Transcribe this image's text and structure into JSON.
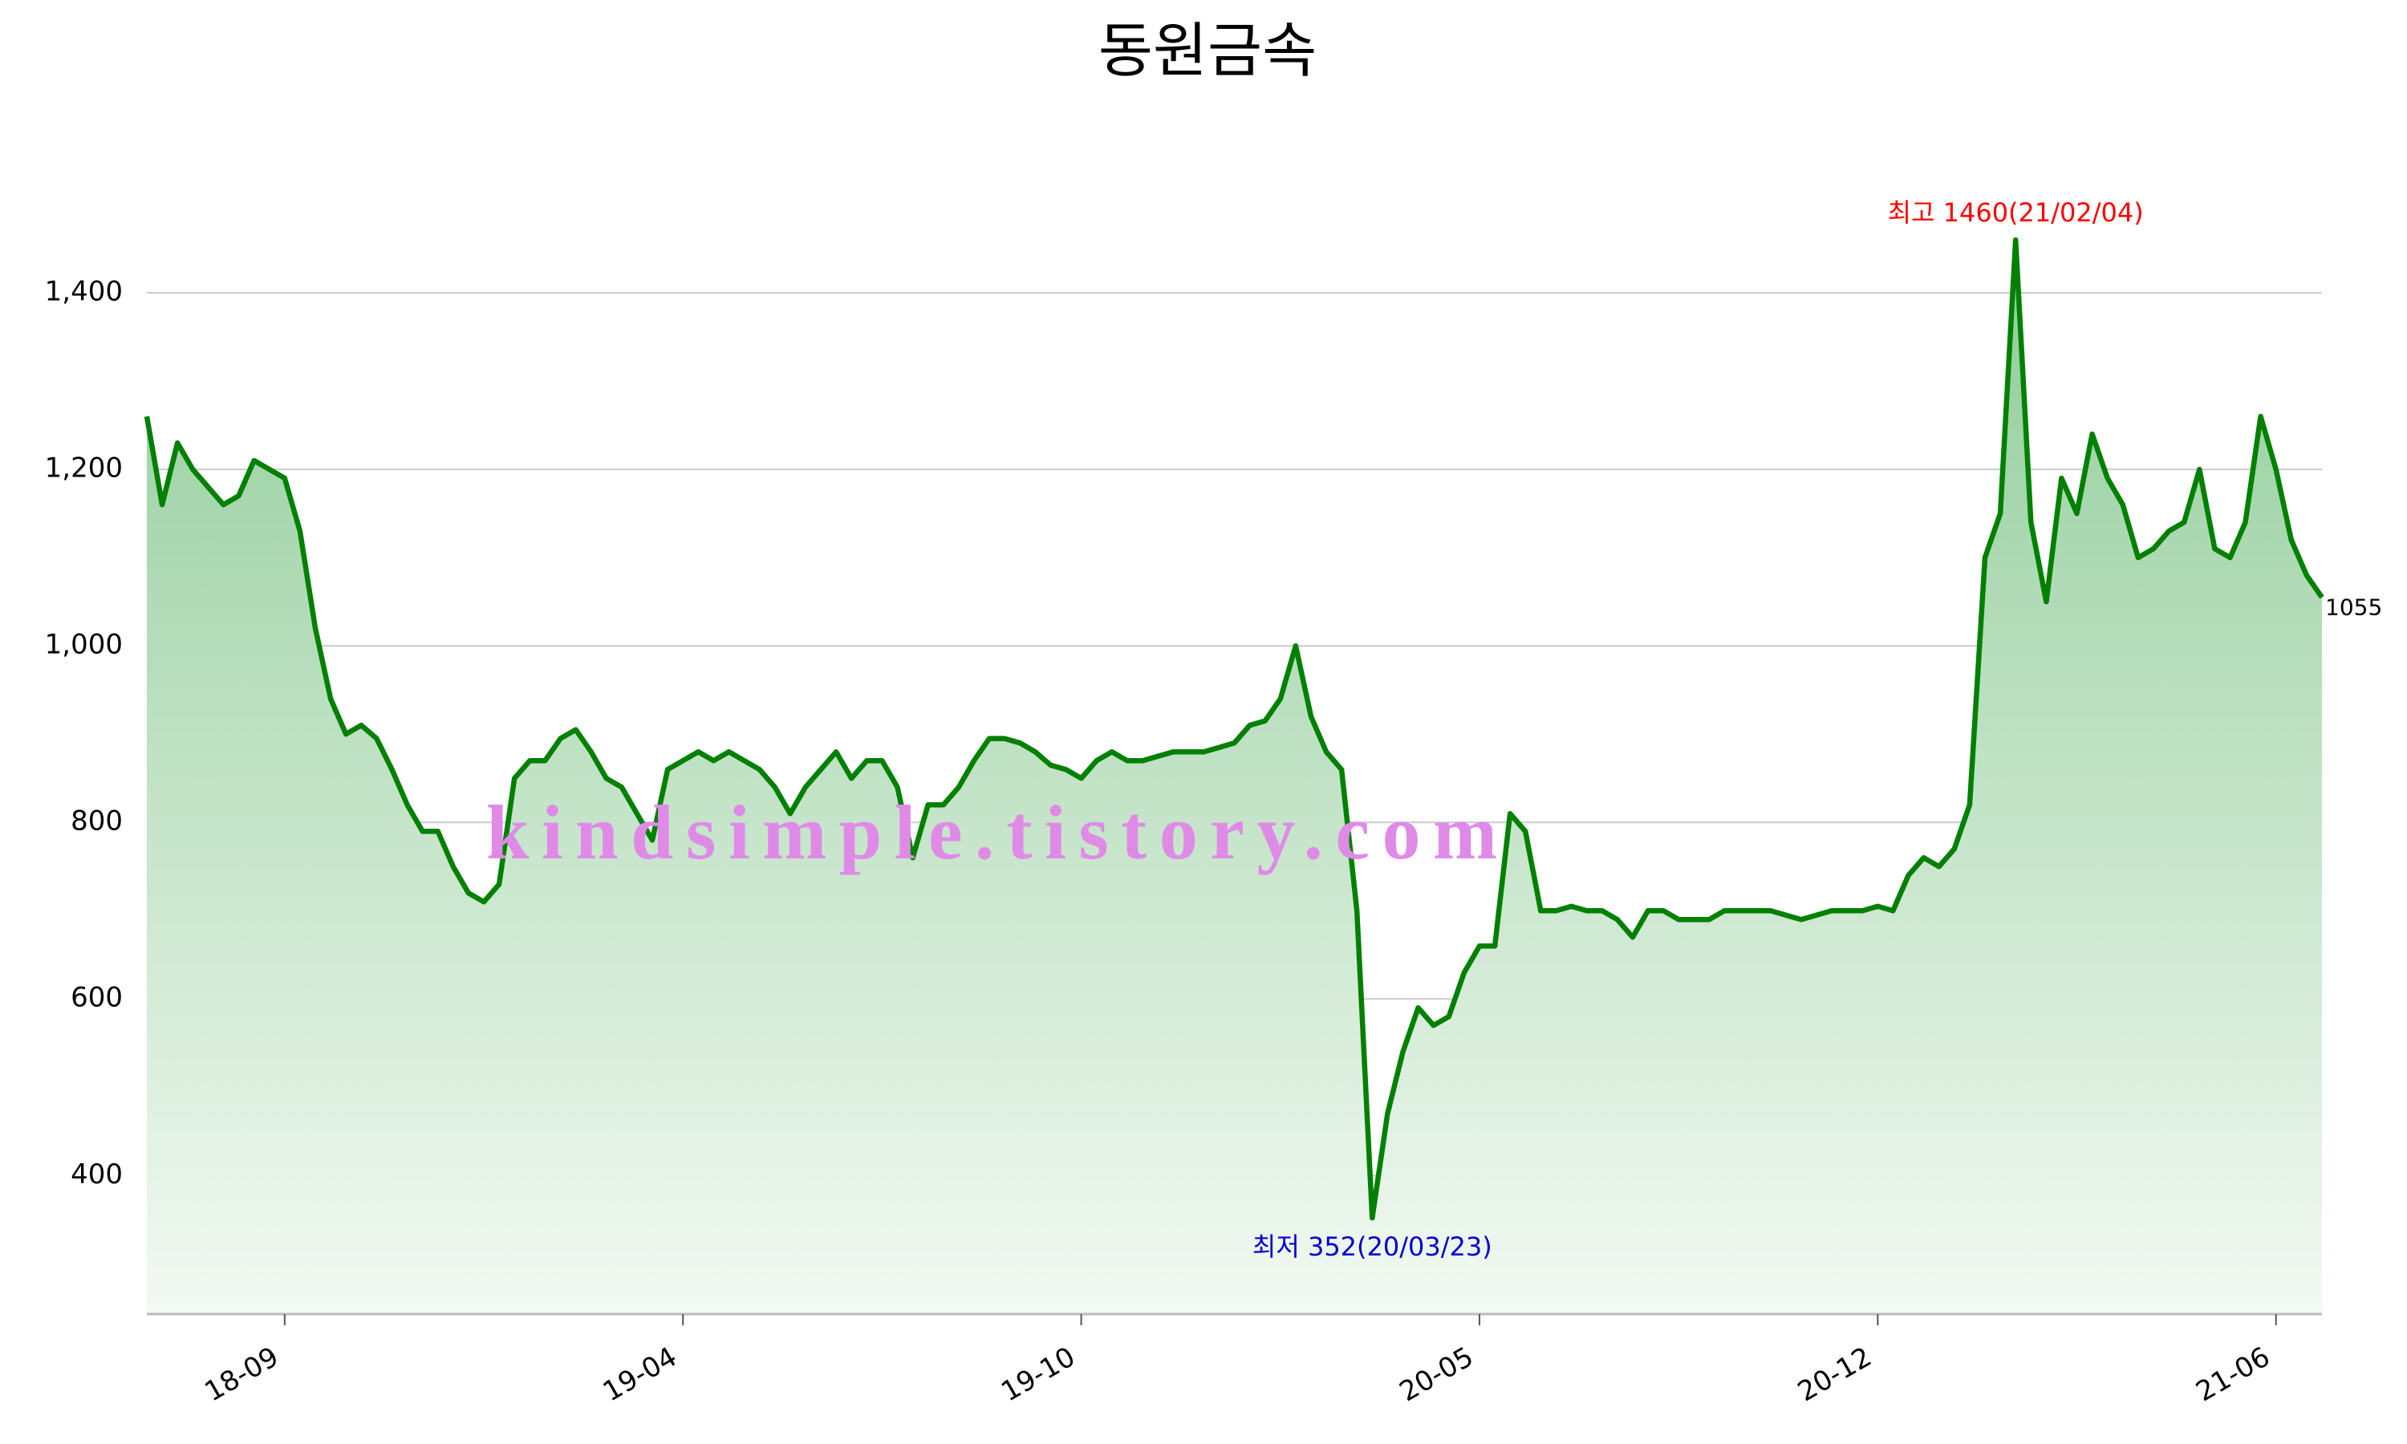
{
  "chart_data": {
    "type": "area",
    "title": "동원금속",
    "categories": [
      null,
      null,
      null,
      null,
      null,
      null,
      null,
      null,
      null,
      "18-09",
      null,
      null,
      null,
      null,
      null,
      null,
      null,
      null,
      null,
      null,
      null,
      null,
      null,
      null,
      null,
      null,
      null,
      null,
      null,
      null,
      null,
      null,
      null,
      null,
      null,
      "19-04",
      null,
      null,
      null,
      null,
      null,
      null,
      null,
      null,
      null,
      null,
      null,
      null,
      null,
      null,
      null,
      null,
      null,
      null,
      null,
      null,
      null,
      null,
      null,
      null,
      null,
      "19-10",
      null,
      null,
      null,
      null,
      null,
      null,
      null,
      null,
      null,
      null,
      null,
      null,
      null,
      null,
      null,
      null,
      null,
      null,
      null,
      null,
      null,
      null,
      null,
      null,
      null,
      "20-05",
      null,
      null,
      null,
      null,
      null,
      null,
      null,
      null,
      null,
      null,
      null,
      null,
      null,
      null,
      null,
      null,
      null,
      null,
      null,
      null,
      null,
      null,
      null,
      null,
      null,
      "20-12",
      null,
      null,
      null,
      null,
      null,
      null,
      null,
      null,
      null,
      null,
      null,
      null,
      null,
      null,
      null,
      null,
      null,
      null,
      null,
      null,
      null,
      null,
      null,
      null,
      null,
      "21-06",
      null,
      null,
      null
    ],
    "values": [
      1260,
      1160,
      1230,
      1200,
      1180,
      1160,
      1170,
      1210,
      1200,
      1190,
      1130,
      1020,
      940,
      900,
      910,
      895,
      860,
      820,
      790,
      790,
      750,
      720,
      710,
      730,
      850,
      870,
      870,
      895,
      905,
      880,
      850,
      840,
      810,
      780,
      860,
      870,
      880,
      870,
      880,
      870,
      860,
      840,
      810,
      840,
      860,
      880,
      850,
      870,
      870,
      840,
      760,
      820,
      820,
      840,
      870,
      895,
      895,
      890,
      880,
      865,
      860,
      850,
      870,
      880,
      870,
      870,
      875,
      880,
      880,
      880,
      885,
      890,
      910,
      915,
      940,
      1000,
      920,
      880,
      860,
      700,
      352,
      470,
      540,
      590,
      570,
      580,
      630,
      660,
      660,
      810,
      790,
      700,
      700,
      705,
      700,
      700,
      690,
      670,
      700,
      700,
      690,
      690,
      690,
      700,
      700,
      700,
      700,
      695,
      690,
      695,
      700,
      700,
      700,
      705,
      700,
      740,
      760,
      750,
      770,
      820,
      1100,
      1150,
      1460,
      1140,
      1050,
      1190,
      1150,
      1240,
      1190,
      1160,
      1100,
      1110,
      1130,
      1140,
      1200,
      1110,
      1100,
      1140,
      1260,
      1200,
      1120,
      1080,
      1055
    ],
    "color": "#008000",
    "ylim": [
      243,
      1530
    ],
    "yticks": [
      400,
      600,
      800,
      {
        "value": 1000,
        "label": "1,000"
      },
      {
        "value": 1200,
        "label": "1,200"
      },
      {
        "value": 1400,
        "label": "1,400"
      }
    ],
    "grid": true,
    "max_label": {
      "text": "최고 1460(21/02/04)",
      "color": "#ff0000"
    },
    "min_label": {
      "text": "최저 352(20/03/23)",
      "color": "#0000cc"
    },
    "watermark": {
      "text": "kindsimple.tistory.com",
      "color": "#e08ae8"
    }
  }
}
